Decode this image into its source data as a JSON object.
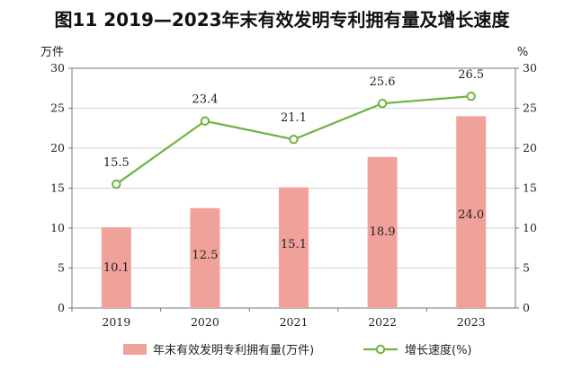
{
  "chart_data": {
    "type": "bar+line",
    "title": "图11 2019—2023年末有效发明专利拥有量及增长速度",
    "categories": [
      "2019",
      "2020",
      "2021",
      "2022",
      "2023"
    ],
    "left_axis": {
      "unit": "万件",
      "ylim": [
        0,
        30
      ],
      "ticks": [
        0,
        5,
        10,
        15,
        20,
        25,
        30
      ]
    },
    "right_axis": {
      "unit": "%",
      "ylim": [
        0,
        30
      ],
      "ticks": [
        0,
        5,
        10,
        15,
        20,
        25,
        30
      ]
    },
    "series": [
      {
        "name": "年末有效发明专利拥有量(万件)",
        "type": "bar",
        "axis": "left",
        "values": [
          10.1,
          12.5,
          15.1,
          18.9,
          24.0
        ],
        "labels": [
          "10.1",
          "12.5",
          "15.1",
          "18.9",
          "24.0"
        ],
        "color": "#f0a199"
      },
      {
        "name": "增长速度(%)",
        "type": "line",
        "axis": "right",
        "values": [
          15.5,
          23.4,
          21.1,
          25.6,
          26.5
        ],
        "labels": [
          "15.5",
          "23.4",
          "21.1",
          "25.6",
          "26.5"
        ],
        "color": "#6db33f"
      }
    ],
    "grid": true,
    "legend_position": "bottom"
  }
}
